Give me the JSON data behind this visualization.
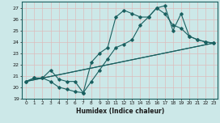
{
  "xlabel": "Humidex (Indice chaleur)",
  "background_color": "#cce8e8",
  "grid_color": "#ddbcbc",
  "line_color": "#1a6060",
  "xlim": [
    -0.5,
    23.5
  ],
  "ylim": [
    19,
    27.6
  ],
  "yticks": [
    19,
    20,
    21,
    22,
    23,
    24,
    25,
    26,
    27
  ],
  "xticks": [
    0,
    1,
    2,
    3,
    4,
    5,
    6,
    7,
    8,
    9,
    10,
    11,
    12,
    13,
    14,
    15,
    16,
    17,
    18,
    19,
    20,
    21,
    22,
    23
  ],
  "line1_x": [
    0,
    1,
    2,
    3,
    4,
    5,
    6,
    7,
    8,
    9,
    10,
    11,
    12,
    13,
    14,
    15,
    16,
    17,
    18,
    19,
    20,
    21,
    22,
    23
  ],
  "line1_y": [
    20.5,
    20.8,
    20.8,
    20.5,
    20.0,
    19.8,
    19.6,
    19.5,
    20.5,
    21.5,
    22.5,
    23.5,
    23.8,
    24.2,
    25.5,
    26.2,
    27.0,
    26.5,
    25.5,
    25.2,
    24.5,
    24.2,
    24.0,
    23.9
  ],
  "line2_x": [
    0,
    1,
    2,
    3,
    4,
    5,
    6,
    7,
    8,
    9,
    10,
    11,
    12,
    13,
    14,
    15,
    16,
    17,
    18,
    19,
    20,
    21,
    22,
    23
  ],
  "line2_y": [
    20.5,
    20.8,
    20.8,
    21.5,
    20.7,
    20.5,
    20.5,
    19.5,
    22.2,
    23.0,
    23.5,
    26.2,
    26.8,
    26.5,
    26.2,
    26.2,
    27.0,
    27.2,
    25.0,
    26.5,
    24.5,
    24.2,
    24.0,
    23.9
  ],
  "line3_x": [
    0,
    23
  ],
  "line3_y": [
    20.5,
    23.9
  ],
  "line4_x": [
    0,
    23
  ],
  "line4_y": [
    20.5,
    23.9
  ]
}
